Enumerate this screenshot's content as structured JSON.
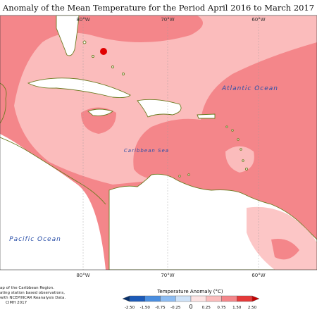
{
  "title": "Anomaly of the Mean Temperature for the Period April 2016 to March 2017",
  "map": {
    "longitude_labels_top": [
      "80°W",
      "70°W",
      "60°W"
    ],
    "longitude_labels_bottom": [
      "80°W",
      "70°W",
      "60°W"
    ],
    "ocean_labels": [
      "Atlantic Ocean",
      "Caribbean Sea",
      "Pacific Ocean"
    ]
  },
  "footnote": [
    "ap of the Caribbean Region.",
    "ating station based observations,",
    "with NCEP/NCAR Reanalysis Data.",
    "CIMH 2017"
  ],
  "colorbar": {
    "title": "Temperature Anomaly (°C)",
    "labels": [
      "-2.50",
      "-1.50",
      "-0.75",
      "-0.25",
      "0",
      "0.25",
      "0.75",
      "1.50",
      "2.50"
    ],
    "colors": [
      "#08306b",
      "#1c5ab8",
      "#4a8ee0",
      "#8dbcf2",
      "#cfe3f9",
      "#fde3e3",
      "#fbbcbc",
      "#f4868a",
      "#e53a3a",
      "#c40000"
    ]
  }
}
